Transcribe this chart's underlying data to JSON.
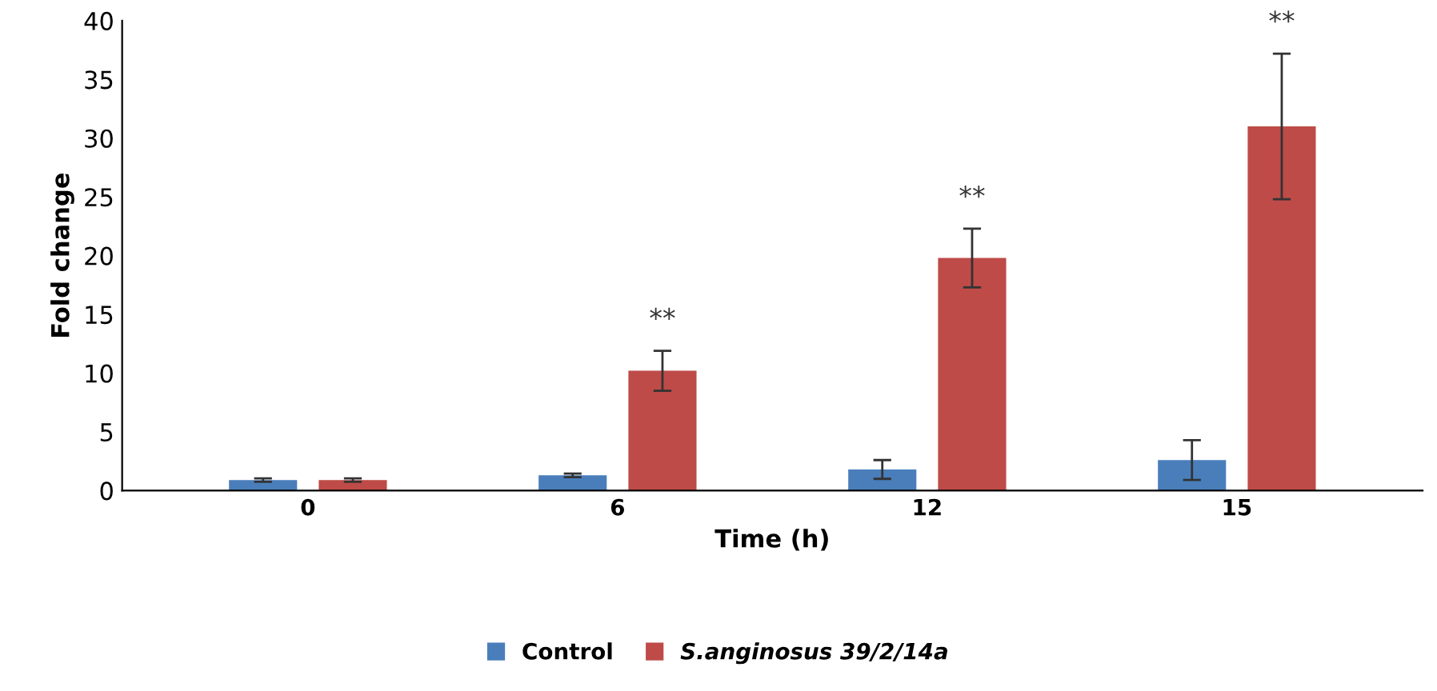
{
  "chart_data": {
    "type": "bar",
    "xlabel": "Time (h)",
    "ylabel": "Fold change",
    "categories": [
      "0",
      "6",
      "12",
      "15"
    ],
    "series": [
      {
        "name": "Control",
        "color": "#4a7ebb",
        "values": [
          0.9,
          1.3,
          1.8,
          2.6
        ],
        "errors": [
          0.15,
          0.15,
          0.8,
          1.7
        ]
      },
      {
        "name": "S.anginosus 39/2/14a",
        "color": "#be4b48",
        "values": [
          0.9,
          10.2,
          19.8,
          31.0
        ],
        "errors": [
          0.15,
          1.7,
          2.5,
          6.2
        ]
      }
    ],
    "annotations": [
      "**",
      "**",
      "**"
    ],
    "ylim": [
      0,
      40
    ],
    "yticks": [
      0,
      5,
      10,
      15,
      20,
      25,
      30,
      35,
      40
    ],
    "grid": false,
    "legend": "bottom"
  }
}
